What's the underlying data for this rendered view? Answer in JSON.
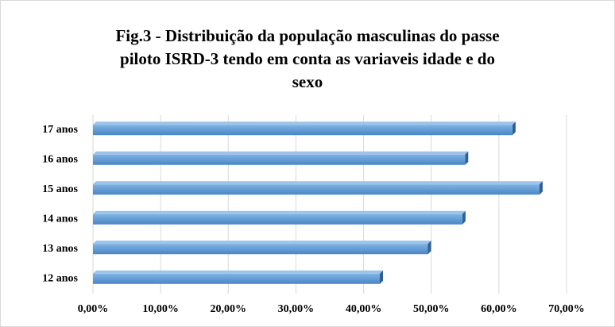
{
  "chart_data": {
    "type": "bar",
    "orientation": "horizontal",
    "title": [
      "Fig.3 - Distribuição da população masculinas do passe",
      "piloto ISRD-3 tendo em conta as variaveis idade e do",
      "sexo"
    ],
    "categories": [
      "17 anos",
      "16 anos",
      "15 anos",
      "14 anos",
      "13 anos",
      "12 anos"
    ],
    "values": [
      62,
      55,
      66,
      54.6,
      49.5,
      42.4
    ],
    "color": "#5b9bd5",
    "xlim": [
      0,
      70
    ],
    "xticks": [
      {
        "value": 0,
        "label": "0,00%"
      },
      {
        "value": 10,
        "label": "10,00%"
      },
      {
        "value": 20,
        "label": "20,00%"
      },
      {
        "value": 30,
        "label": "30,00%"
      },
      {
        "value": 40,
        "label": "40,00%"
      },
      {
        "value": 50,
        "label": "50,00%"
      },
      {
        "value": 60,
        "label": "60,00%"
      },
      {
        "value": 70,
        "label": "70,00%"
      }
    ],
    "grid": true
  }
}
